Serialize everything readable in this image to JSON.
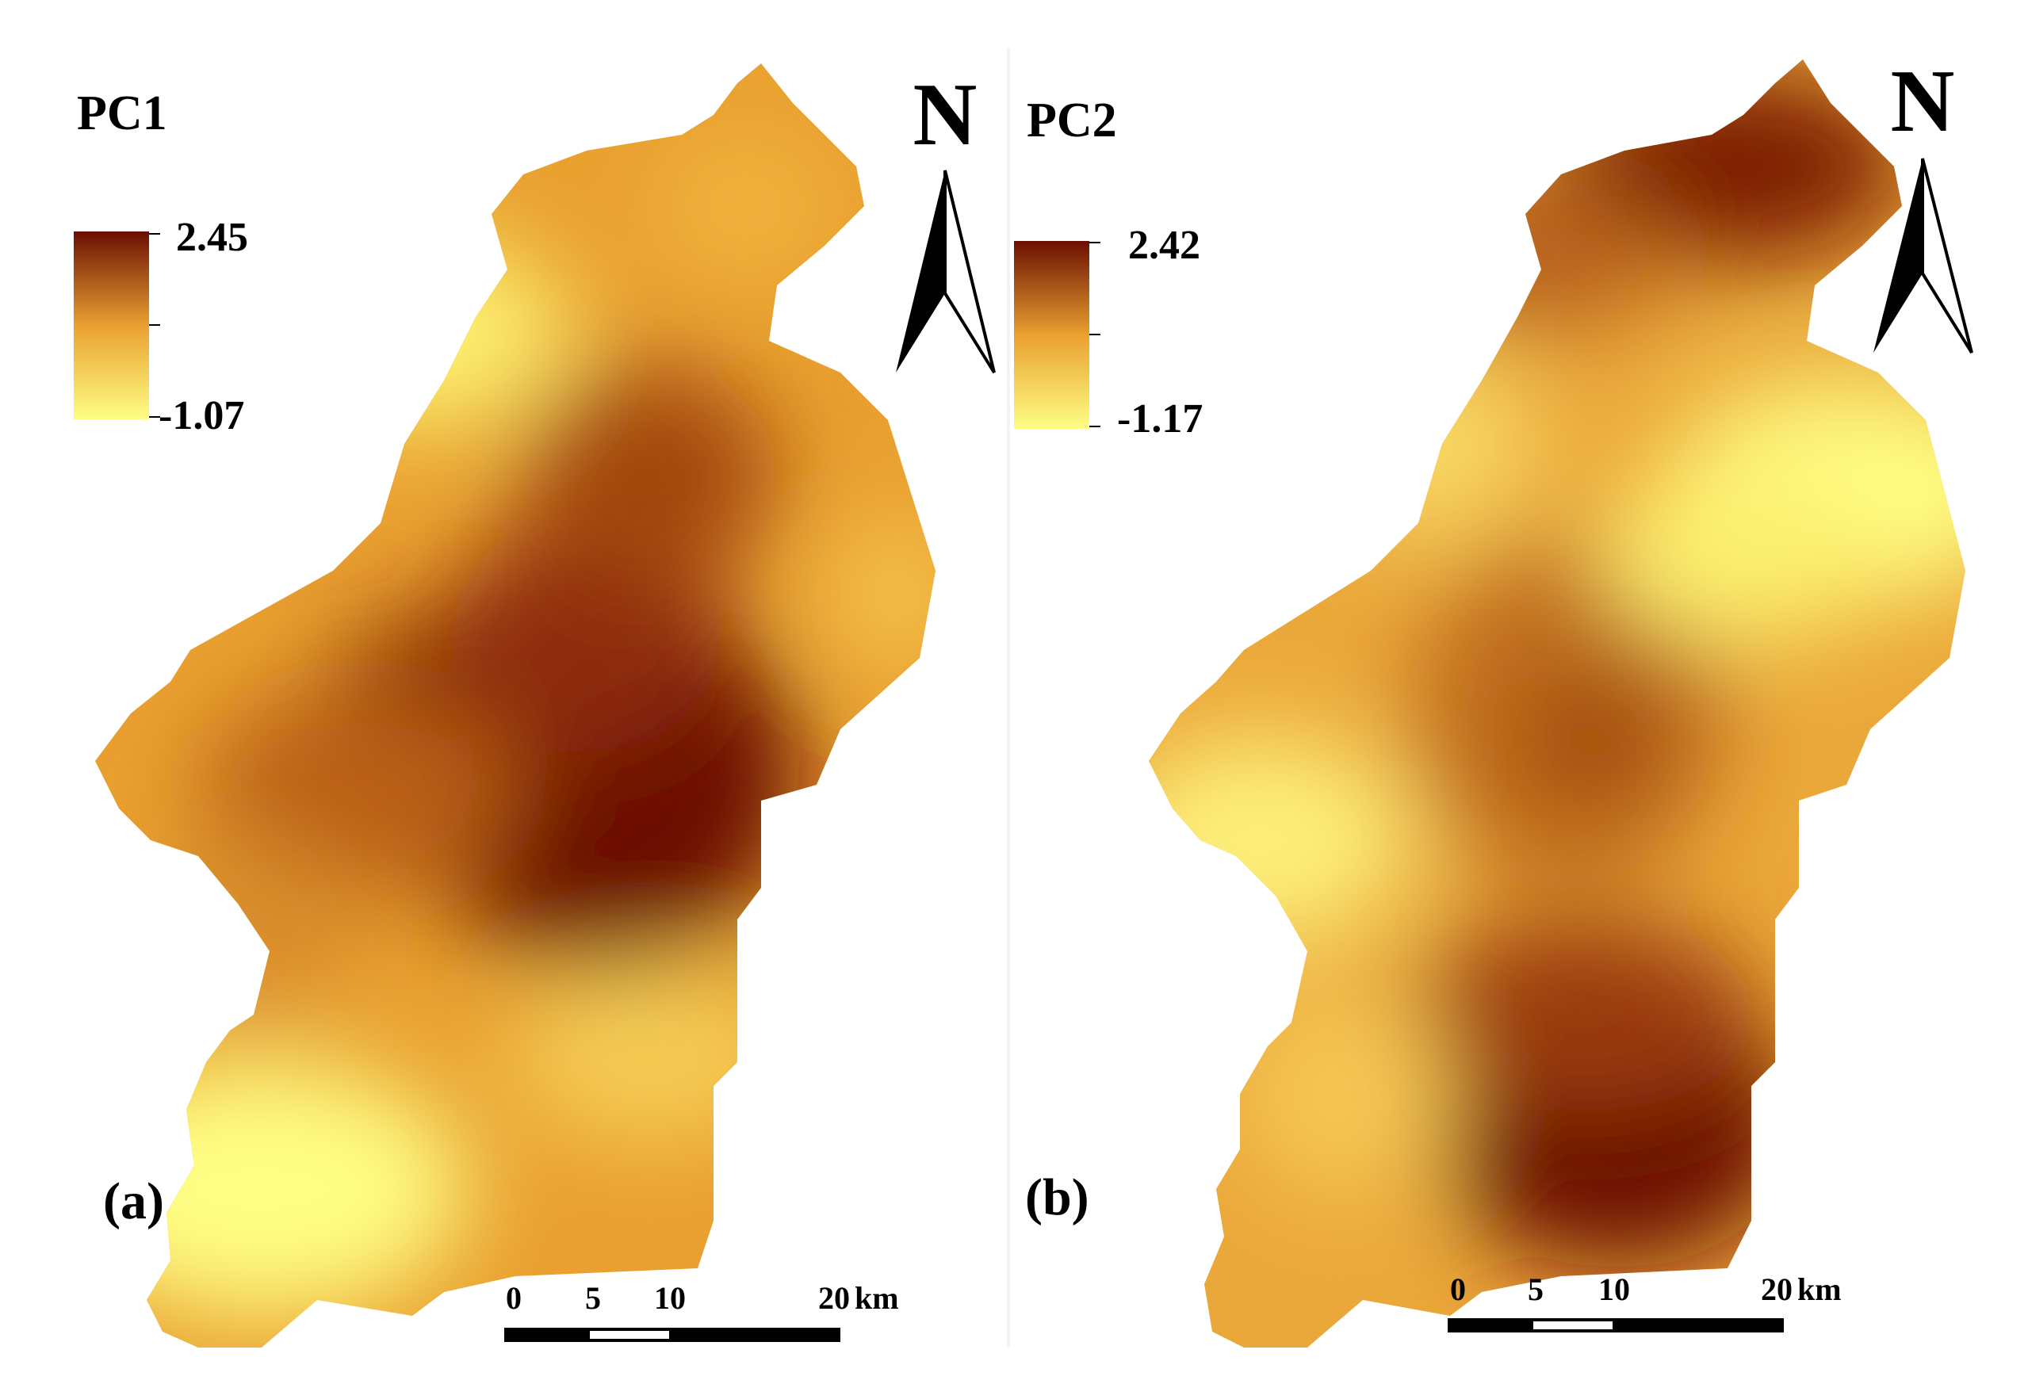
{
  "colors": {
    "ramp_high": "#6b0f02",
    "ramp_mid": "#e9a030",
    "ramp_low": "#fefe84",
    "scale_bar_fill": "#000000",
    "scale_bar_gap": "#ffffff"
  },
  "panels": [
    {
      "id": "a",
      "title": "PC1",
      "label": "(a)",
      "legend": {
        "max_label": "2.45",
        "min_label": "-1.07",
        "max_value": 2.45,
        "min_value": -1.07
      },
      "north_label": "N",
      "scale_bar": {
        "ticks": [
          "0",
          "5",
          "10",
          "20"
        ],
        "unit": "km",
        "tick_values_km": [
          0,
          5,
          10,
          20
        ]
      }
    },
    {
      "id": "b",
      "title": "PC2",
      "label": "(b)",
      "legend": {
        "max_label": "2.42",
        "min_label": "-1.17",
        "max_value": 2.42,
        "min_value": -1.17
      },
      "north_label": "N",
      "scale_bar": {
        "ticks": [
          "0",
          "5",
          "10",
          "20"
        ],
        "unit": "km",
        "tick_values_km": [
          0,
          5,
          10,
          20
        ]
      }
    }
  ]
}
